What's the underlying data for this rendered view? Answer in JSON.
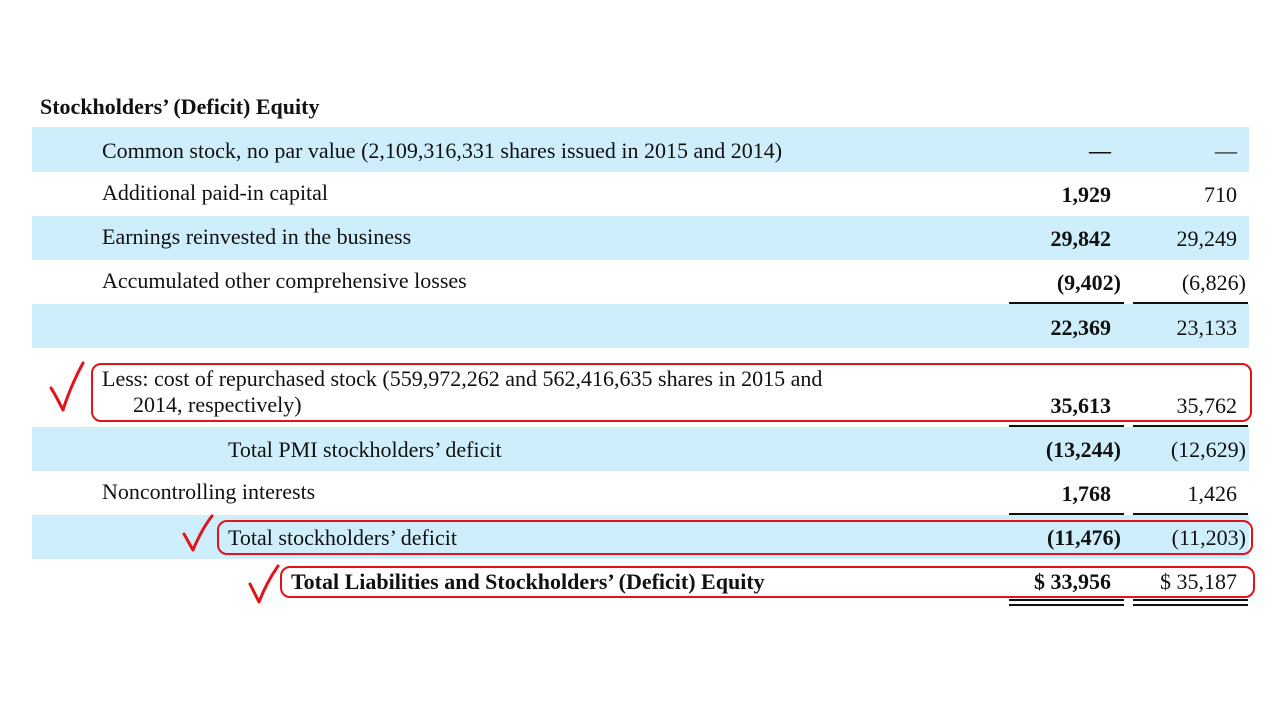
{
  "section_title": "Stockholders’ (Deficit) Equity",
  "rows": [
    {
      "label": "Common stock, no par value (2,109,316,331 shares issued in 2015 and 2014)",
      "v2015": "—",
      "v2014": "—"
    },
    {
      "label": "Additional paid-in capital",
      "v2015": "1,929",
      "v2014": "710"
    },
    {
      "label": "Earnings reinvested in the business",
      "v2015": "29,842",
      "v2014": "29,249"
    },
    {
      "label": "Accumulated other comprehensive losses",
      "v2015": "(9,402)",
      "v2014": "(6,826)"
    },
    {
      "label": "",
      "v2015": "22,369",
      "v2014": "23,133"
    },
    {
      "label_line1": "Less: cost of repurchased stock  (559,972,262 and 562,416,635 shares in 2015 and",
      "label_line2": "2014, respectively)",
      "v2015": "35,613",
      "v2014": "35,762"
    },
    {
      "label": "Total PMI stockholders’ deficit",
      "v2015": "(13,244)",
      "v2014": "(12,629)"
    },
    {
      "label": "Noncontrolling interests",
      "v2015": "1,768",
      "v2014": "1,426"
    },
    {
      "label": "Total stockholders’ deficit",
      "v2015": "(11,476)",
      "v2014": "(11,203)"
    },
    {
      "label": "Total Liabilities and Stockholders’ (Deficit) Equity",
      "v2015": "$  33,956",
      "v2014": "$  35,187"
    }
  ],
  "annotation_color": "#e3121b",
  "shade_color": "#cdeefa",
  "annotation_icons": [
    "checkmark-icon",
    "checkmark-icon",
    "checkmark-icon"
  ]
}
